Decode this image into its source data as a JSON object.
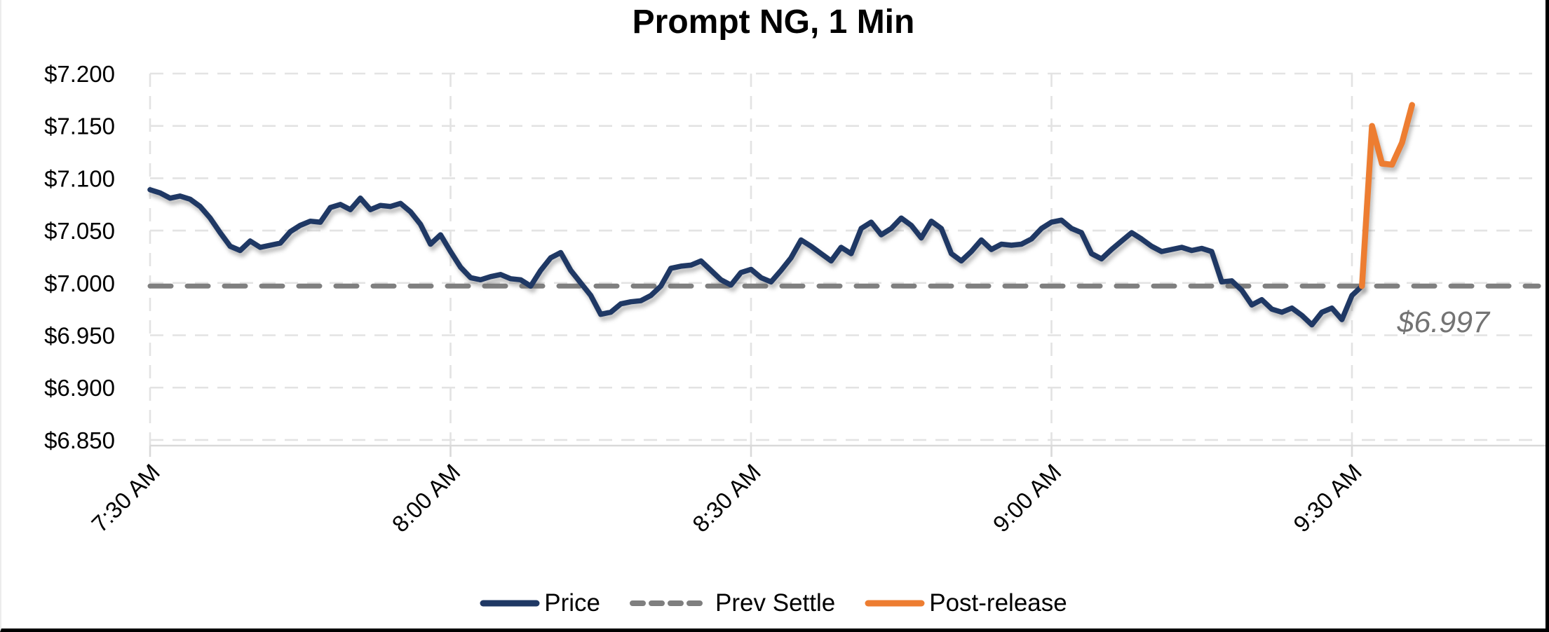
{
  "chart_data": {
    "type": "line",
    "title": "Prompt NG, 1 Min",
    "x_axis": {
      "tick_labels": [
        "7:30 AM",
        "8:00 AM",
        "8:30 AM",
        "9:00 AM",
        "9:30 AM"
      ],
      "minutes_per_tick": 30,
      "label_rotation_deg": -45,
      "start_time": "7:30 AM"
    },
    "y_axis": {
      "tick_labels": [
        "$7.200",
        "$7.150",
        "$7.100",
        "$7.050",
        "$7.000",
        "$6.950",
        "$6.900",
        "$6.850"
      ],
      "tick_values": [
        7.2,
        7.15,
        7.1,
        7.05,
        7.0,
        6.95,
        6.9,
        6.85
      ],
      "max": 7.2,
      "min_at_axis": 6.8445,
      "grid": "dashed"
    },
    "colors": {
      "price": "#1F3864",
      "prev_settle": "#7F7F7F",
      "post_release": "#ED7D31",
      "gridline": "#E3E3E3",
      "axis_line": "#D9D9D9",
      "annotation": "#737373"
    },
    "series": [
      {
        "name": "Price",
        "style": "solid",
        "start_minute": 0,
        "interval_minutes": 1,
        "values": [
          7.089,
          7.086,
          7.081,
          7.083,
          7.08,
          7.073,
          7.062,
          7.048,
          7.035,
          7.031,
          7.04,
          7.034,
          7.036,
          7.038,
          7.049,
          7.055,
          7.059,
          7.058,
          7.072,
          7.075,
          7.07,
          7.081,
          7.07,
          7.074,
          7.073,
          7.076,
          7.068,
          7.056,
          7.037,
          7.046,
          7.03,
          7.015,
          7.005,
          7.003,
          7.006,
          7.008,
          7.004,
          7.003,
          6.997,
          7.012,
          7.024,
          7.029,
          7.012,
          7.0,
          6.988,
          6.97,
          6.972,
          6.98,
          6.982,
          6.983,
          6.988,
          6.997,
          7.014,
          7.016,
          7.017,
          7.021,
          7.012,
          7.003,
          6.998,
          7.01,
          7.013,
          7.005,
          7.001,
          7.012,
          7.024,
          7.041,
          7.035,
          7.028,
          7.021,
          7.034,
          7.028,
          7.052,
          7.058,
          7.046,
          7.052,
          7.062,
          7.055,
          7.043,
          7.059,
          7.052,
          7.028,
          7.021,
          7.03,
          7.041,
          7.032,
          7.037,
          7.036,
          7.037,
          7.042,
          7.052,
          7.058,
          7.06,
          7.052,
          7.048,
          7.028,
          7.023,
          7.032,
          7.04,
          7.048,
          7.042,
          7.035,
          7.03,
          7.032,
          7.034,
          7.031,
          7.033,
          7.03,
          7.001,
          7.002,
          6.993,
          6.979,
          6.984,
          6.975,
          6.972,
          6.976,
          6.969,
          6.96,
          6.972,
          6.976,
          6.965,
          6.988,
          6.997
        ]
      },
      {
        "name": "Prev Settle",
        "style": "dashed",
        "value": 6.997
      },
      {
        "name": "Post-release",
        "style": "solid",
        "start_minute": 121,
        "interval_minutes": 1,
        "values": [
          6.997,
          7.15,
          7.114,
          7.113,
          7.134,
          7.17
        ]
      }
    ],
    "annotation": {
      "text": "$6.997"
    },
    "legend": {
      "position": "bottom",
      "items": [
        {
          "label": "Price",
          "style": "solid",
          "color_key": "price"
        },
        {
          "label": "Prev Settle",
          "style": "dashed",
          "color_key": "prev_settle"
        },
        {
          "label": "Post-release",
          "style": "solid",
          "color_key": "post_release"
        }
      ]
    }
  }
}
